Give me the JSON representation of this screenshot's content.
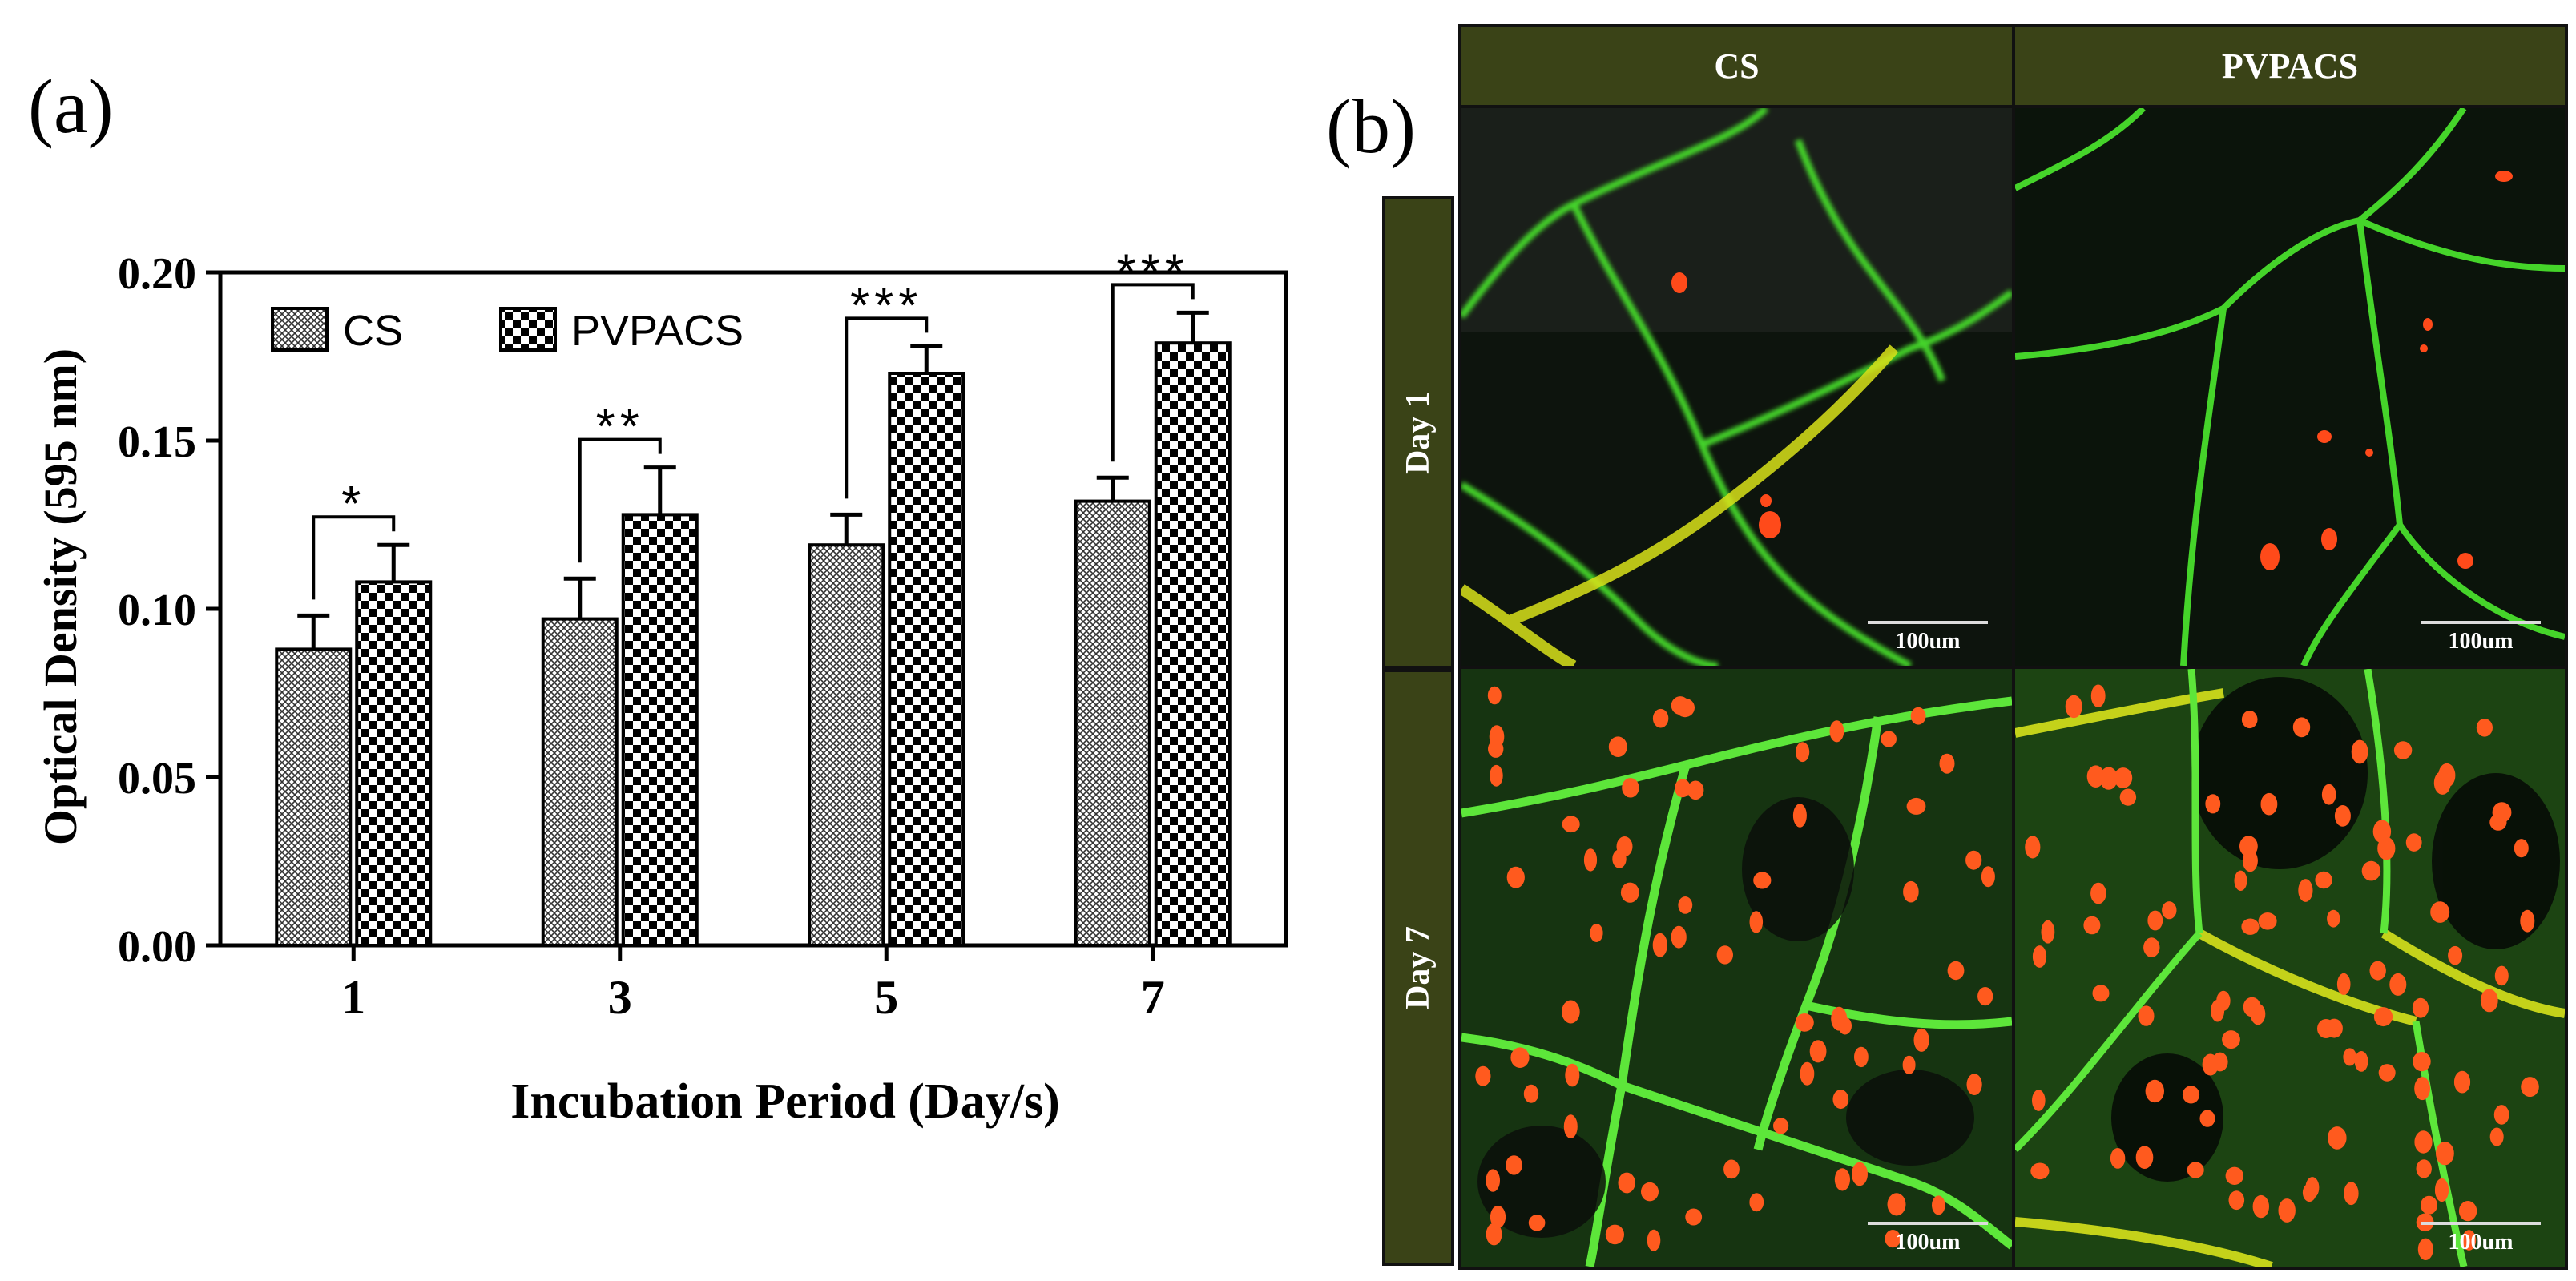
{
  "panel_a_label": "(a)",
  "panel_b_label": "(b)",
  "chart_data": {
    "type": "bar",
    "title": "",
    "xlabel": "Incubation Period (Day/s)",
    "ylabel": "Optical Density (595 nm)",
    "categories": [
      "1",
      "3",
      "5",
      "7"
    ],
    "ylim": [
      0,
      0.2
    ],
    "yticks": [
      "0.00",
      "0.05",
      "0.10",
      "0.15",
      "0.20"
    ],
    "series": [
      {
        "name": "CS",
        "values": [
          0.088,
          0.097,
          0.119,
          0.132
        ],
        "errors": [
          0.01,
          0.012,
          0.009,
          0.007
        ],
        "pattern": "fine-hatch"
      },
      {
        "name": "PVPACS",
        "values": [
          0.108,
          0.128,
          0.17,
          0.179
        ],
        "errors": [
          0.011,
          0.014,
          0.008,
          0.009
        ],
        "pattern": "checker"
      }
    ],
    "significance": [
      "*",
      "**",
      "***",
      "***"
    ],
    "legend": "top-left",
    "grid": false
  },
  "micrographs": {
    "columns": [
      "CS",
      "PVPACS"
    ],
    "rows": [
      "Day 1",
      "Day 7"
    ],
    "scale_label": "100um",
    "colors": {
      "header_bg": "#3a4317",
      "scaffold": "#3ccf2a",
      "nuclei": "#ff4a1a",
      "background": "#0b120b"
    }
  }
}
